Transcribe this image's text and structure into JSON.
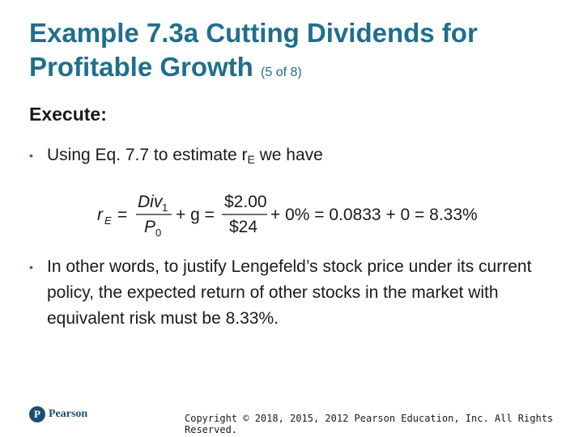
{
  "title": {
    "main": "Example 7.3a Cutting Dividends for Profitable Growth",
    "counter": "(5 of 8)"
  },
  "section_heading": "Execute:",
  "bullets": {
    "first": {
      "prefix": "Using Eq. 7.7 to estimate r",
      "subscript": "E",
      "suffix": " we have"
    },
    "second": "In other words, to justify Lengefeld’s stock price under its current policy, the expected return of other stocks in the market with equivalent risk must be 8.33%."
  },
  "equation": {
    "lhs": "r",
    "lhs_sub": "E",
    "eq1": "=",
    "frac1_num": "Div",
    "frac1_num_sub": "1",
    "frac1_den": "P",
    "frac1_den_sub": "0",
    "plus_g": "+ g =",
    "frac2_num": "$2.00",
    "frac2_den": "$24",
    "tail": "+ 0% = 0.0833 + 0 = 8.33%"
  },
  "footer": {
    "logo_mark": "P",
    "logo_text": "Pearson",
    "copyright": "Copyright © 2018, 2015, 2012 Pearson Education, Inc. All Rights Reserved."
  },
  "colors": {
    "title": "#1f6f8b",
    "logo": "#1b4f72"
  }
}
